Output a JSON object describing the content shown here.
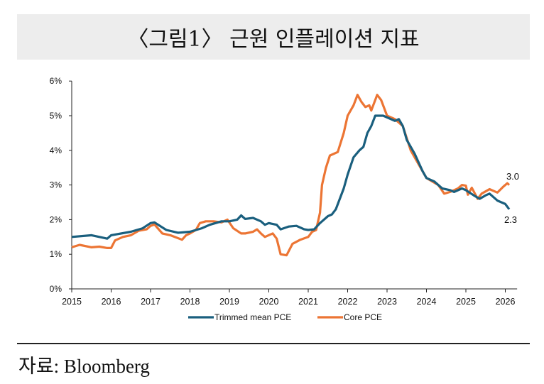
{
  "title": "〈그림1〉 근원 인플레이션 지표",
  "source": "자료: Bloomberg",
  "chart_data": {
    "type": "line",
    "title": "〈그림1〉 근원 인플레이션 지표",
    "xlabel": "",
    "ylabel": "",
    "xlim": [
      2015,
      2026.3
    ],
    "ylim": [
      0,
      6
    ],
    "x_ticks": [
      "2015",
      "2016",
      "2017",
      "2018",
      "2019",
      "2020",
      "2021",
      "2022",
      "2023",
      "2024",
      "2025",
      "2026"
    ],
    "y_ticks": [
      "0%",
      "1%",
      "2%",
      "3%",
      "4%",
      "5%",
      "6%"
    ],
    "legend_position": "bottom",
    "colors": {
      "Trimmed mean PCE": "#1a5f7e",
      "Core PCE": "#ec7534"
    },
    "end_labels": [
      "3.0",
      "2.3"
    ],
    "series": [
      {
        "name": "Trimmed mean PCE",
        "points": [
          [
            2015.0,
            1.5
          ],
          [
            2015.5,
            1.55
          ],
          [
            2015.9,
            1.45
          ],
          [
            2016.0,
            1.55
          ],
          [
            2016.5,
            1.65
          ],
          [
            2016.8,
            1.75
          ],
          [
            2017.0,
            1.9
          ],
          [
            2017.1,
            1.92
          ],
          [
            2017.4,
            1.7
          ],
          [
            2017.7,
            1.62
          ],
          [
            2018.0,
            1.65
          ],
          [
            2018.3,
            1.75
          ],
          [
            2018.5,
            1.85
          ],
          [
            2018.8,
            1.95
          ],
          [
            2019.0,
            1.95
          ],
          [
            2019.2,
            2.0
          ],
          [
            2019.3,
            2.12
          ],
          [
            2019.4,
            2.02
          ],
          [
            2019.6,
            2.05
          ],
          [
            2019.8,
            1.95
          ],
          [
            2019.9,
            1.85
          ],
          [
            2020.0,
            1.9
          ],
          [
            2020.2,
            1.85
          ],
          [
            2020.3,
            1.72
          ],
          [
            2020.5,
            1.8
          ],
          [
            2020.7,
            1.82
          ],
          [
            2020.9,
            1.72
          ],
          [
            2021.0,
            1.7
          ],
          [
            2021.15,
            1.72
          ],
          [
            2021.3,
            1.9
          ],
          [
            2021.5,
            2.1
          ],
          [
            2021.6,
            2.15
          ],
          [
            2021.7,
            2.3
          ],
          [
            2021.9,
            2.9
          ],
          [
            2022.0,
            3.3
          ],
          [
            2022.15,
            3.8
          ],
          [
            2022.3,
            4.0
          ],
          [
            2022.4,
            4.1
          ],
          [
            2022.5,
            4.5
          ],
          [
            2022.6,
            4.7
          ],
          [
            2022.7,
            5.0
          ],
          [
            2022.9,
            5.0
          ],
          [
            2023.0,
            4.95
          ],
          [
            2023.2,
            4.85
          ],
          [
            2023.3,
            4.9
          ],
          [
            2023.4,
            4.7
          ],
          [
            2023.5,
            4.3
          ],
          [
            2023.7,
            3.9
          ],
          [
            2023.9,
            3.4
          ],
          [
            2024.0,
            3.2
          ],
          [
            2024.2,
            3.1
          ],
          [
            2024.4,
            2.9
          ],
          [
            2024.6,
            2.85
          ],
          [
            2024.7,
            2.8
          ],
          [
            2024.9,
            2.9
          ],
          [
            2025.0,
            2.85
          ],
          [
            2025.2,
            2.7
          ],
          [
            2025.35,
            2.6
          ],
          [
            2025.5,
            2.7
          ],
          [
            2025.6,
            2.75
          ],
          [
            2025.8,
            2.55
          ],
          [
            2026.0,
            2.45
          ],
          [
            2026.1,
            2.3
          ]
        ]
      },
      {
        "name": "Core PCE",
        "points": [
          [
            2015.0,
            1.2
          ],
          [
            2015.2,
            1.27
          ],
          [
            2015.5,
            1.2
          ],
          [
            2015.7,
            1.22
          ],
          [
            2015.9,
            1.18
          ],
          [
            2016.0,
            1.18
          ],
          [
            2016.1,
            1.4
          ],
          [
            2016.3,
            1.5
          ],
          [
            2016.5,
            1.55
          ],
          [
            2016.7,
            1.68
          ],
          [
            2016.9,
            1.72
          ],
          [
            2017.0,
            1.82
          ],
          [
            2017.1,
            1.86
          ],
          [
            2017.3,
            1.6
          ],
          [
            2017.5,
            1.55
          ],
          [
            2017.8,
            1.42
          ],
          [
            2017.9,
            1.55
          ],
          [
            2018.0,
            1.6
          ],
          [
            2018.15,
            1.7
          ],
          [
            2018.25,
            1.9
          ],
          [
            2018.4,
            1.95
          ],
          [
            2018.6,
            1.95
          ],
          [
            2018.8,
            1.92
          ],
          [
            2018.95,
            2.0
          ],
          [
            2019.1,
            1.75
          ],
          [
            2019.3,
            1.6
          ],
          [
            2019.4,
            1.6
          ],
          [
            2019.6,
            1.65
          ],
          [
            2019.7,
            1.72
          ],
          [
            2019.8,
            1.6
          ],
          [
            2019.9,
            1.5
          ],
          [
            2020.1,
            1.6
          ],
          [
            2020.2,
            1.45
          ],
          [
            2020.3,
            1.0
          ],
          [
            2020.45,
            0.97
          ],
          [
            2020.6,
            1.3
          ],
          [
            2020.8,
            1.42
          ],
          [
            2021.0,
            1.5
          ],
          [
            2021.1,
            1.65
          ],
          [
            2021.2,
            1.7
          ],
          [
            2021.3,
            2.2
          ],
          [
            2021.35,
            3.0
          ],
          [
            2021.45,
            3.5
          ],
          [
            2021.55,
            3.85
          ],
          [
            2021.75,
            3.95
          ],
          [
            2021.9,
            4.5
          ],
          [
            2022.0,
            5.0
          ],
          [
            2022.15,
            5.3
          ],
          [
            2022.25,
            5.6
          ],
          [
            2022.35,
            5.4
          ],
          [
            2022.45,
            5.25
          ],
          [
            2022.55,
            5.3
          ],
          [
            2022.6,
            5.15
          ],
          [
            2022.75,
            5.6
          ],
          [
            2022.85,
            5.45
          ],
          [
            2023.0,
            5.0
          ],
          [
            2023.2,
            4.9
          ],
          [
            2023.4,
            4.7
          ],
          [
            2023.6,
            4.0
          ],
          [
            2023.8,
            3.6
          ],
          [
            2024.0,
            3.2
          ],
          [
            2024.15,
            3.1
          ],
          [
            2024.3,
            3.0
          ],
          [
            2024.45,
            2.75
          ],
          [
            2024.6,
            2.8
          ],
          [
            2024.8,
            2.9
          ],
          [
            2024.9,
            3.0
          ],
          [
            2025.0,
            2.98
          ],
          [
            2025.05,
            2.72
          ],
          [
            2025.15,
            2.92
          ],
          [
            2025.3,
            2.6
          ],
          [
            2025.4,
            2.75
          ],
          [
            2025.6,
            2.88
          ],
          [
            2025.8,
            2.78
          ],
          [
            2025.95,
            2.95
          ],
          [
            2026.05,
            3.05
          ],
          [
            2026.1,
            3.0
          ]
        ]
      }
    ]
  }
}
